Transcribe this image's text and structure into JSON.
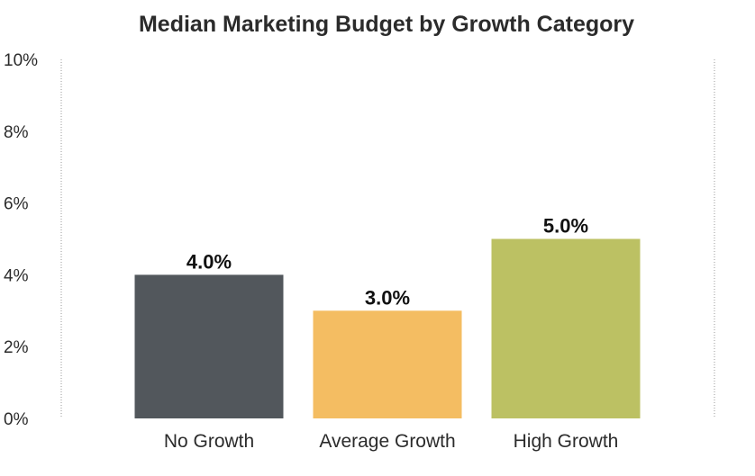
{
  "chart_data": {
    "type": "bar",
    "title": "Median Marketing Budget by Growth Category",
    "xlabel": "",
    "ylabel": "",
    "categories": [
      "No Growth",
      "Average Growth",
      "High Growth"
    ],
    "values": [
      4.0,
      3.0,
      5.0
    ],
    "data_labels": [
      "4.0%",
      "3.0%",
      "5.0%"
    ],
    "colors": [
      "#52575c",
      "#f4bd62",
      "#bcc163"
    ],
    "ylim": [
      0,
      10
    ],
    "y_ticks": [
      0,
      2,
      4,
      6,
      8,
      10
    ],
    "y_tick_labels": [
      "0%",
      "2%",
      "4%",
      "6%",
      "8%",
      "10%"
    ],
    "grid": false
  }
}
